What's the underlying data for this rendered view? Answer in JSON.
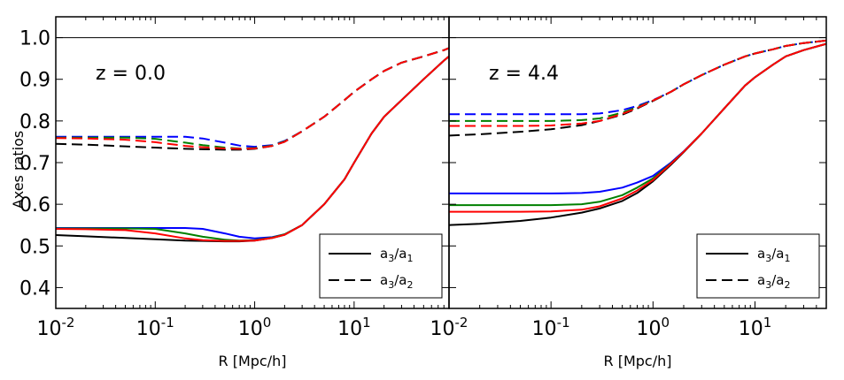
{
  "figure": {
    "ylabel": "Axes ratios"
  },
  "chart_data": [
    {
      "type": "line",
      "annotation": "z = 0.0",
      "xlabel": "R [Mpc/h]",
      "ylabel": "Axes ratios",
      "xscale": "log",
      "xlim": [
        0.01,
        90
      ],
      "ylim": [
        0.35,
        1.05
      ],
      "xticks": [
        {
          "value": 0.01,
          "label": "10",
          "exp": "-2"
        },
        {
          "value": 0.1,
          "label": "10",
          "exp": "-1"
        },
        {
          "value": 1,
          "label": "10",
          "exp": "0"
        },
        {
          "value": 10,
          "label": "10",
          "exp": "1"
        }
      ],
      "yticks": [
        "0.4",
        "0.5",
        "0.6",
        "0.7",
        "0.8",
        "0.9",
        "1.0"
      ],
      "reference_line": {
        "y": 1.0,
        "color": "#000000"
      },
      "legend": {
        "placement": "lower-right",
        "entries": [
          {
            "label": "a3/a1",
            "base": "a",
            "sub1": "3",
            "sep": "/a",
            "sub2": "1",
            "style": "solid"
          },
          {
            "label": "a3/a2",
            "base": "a",
            "sub1": "3",
            "sep": "/a",
            "sub2": "2",
            "style": "dashed"
          }
        ]
      },
      "x": [
        0.01,
        0.02,
        0.05,
        0.1,
        0.2,
        0.3,
        0.5,
        0.7,
        1,
        1.5,
        2,
        3,
        5,
        8,
        10,
        15,
        20,
        30,
        50,
        80,
        90
      ],
      "series": [
        {
          "name": "a3/a1 black",
          "color": "#000000",
          "style": "solid",
          "values": [
            0.526,
            0.523,
            0.519,
            0.516,
            0.513,
            0.512,
            0.511,
            0.511,
            0.513,
            0.519,
            0.527,
            0.55,
            0.6,
            0.66,
            0.7,
            0.77,
            0.81,
            0.85,
            0.9,
            0.945,
            0.955
          ]
        },
        {
          "name": "a3/a1 blue",
          "color": "#0000ff",
          "style": "solid",
          "values": [
            0.543,
            0.543,
            0.543,
            0.543,
            0.543,
            0.541,
            0.53,
            0.522,
            0.518,
            0.521,
            0.528,
            0.55,
            0.6,
            0.66,
            0.7,
            0.77,
            0.81,
            0.85,
            0.9,
            0.945,
            0.955
          ]
        },
        {
          "name": "a3/a1 green",
          "color": "#008000",
          "style": "solid",
          "values": [
            0.542,
            0.542,
            0.542,
            0.541,
            0.53,
            0.522,
            0.515,
            0.513,
            0.514,
            0.52,
            0.528,
            0.55,
            0.6,
            0.66,
            0.7,
            0.77,
            0.81,
            0.85,
            0.9,
            0.945,
            0.955
          ]
        },
        {
          "name": "a3/a1 red",
          "color": "#ff0000",
          "style": "solid",
          "values": [
            0.541,
            0.54,
            0.538,
            0.53,
            0.518,
            0.514,
            0.512,
            0.512,
            0.513,
            0.519,
            0.527,
            0.55,
            0.6,
            0.66,
            0.7,
            0.77,
            0.81,
            0.85,
            0.9,
            0.945,
            0.955
          ]
        },
        {
          "name": "a3/a2 black",
          "color": "#000000",
          "style": "dashed",
          "values": [
            0.745,
            0.743,
            0.739,
            0.736,
            0.733,
            0.732,
            0.731,
            0.731,
            0.733,
            0.74,
            0.75,
            0.775,
            0.81,
            0.85,
            0.87,
            0.9,
            0.92,
            0.94,
            0.955,
            0.97,
            0.975
          ]
        },
        {
          "name": "a3/a2 blue",
          "color": "#0000ff",
          "style": "dashed",
          "values": [
            0.762,
            0.762,
            0.762,
            0.762,
            0.762,
            0.758,
            0.748,
            0.741,
            0.738,
            0.742,
            0.752,
            0.775,
            0.81,
            0.85,
            0.87,
            0.9,
            0.92,
            0.94,
            0.955,
            0.97,
            0.975
          ]
        },
        {
          "name": "a3/a2 green",
          "color": "#008000",
          "style": "dashed",
          "values": [
            0.76,
            0.76,
            0.76,
            0.757,
            0.748,
            0.742,
            0.736,
            0.734,
            0.735,
            0.741,
            0.751,
            0.775,
            0.81,
            0.85,
            0.87,
            0.9,
            0.92,
            0.94,
            0.955,
            0.97,
            0.975
          ]
        },
        {
          "name": "a3/a2 red",
          "color": "#ff0000",
          "style": "dashed",
          "values": [
            0.759,
            0.758,
            0.755,
            0.749,
            0.74,
            0.737,
            0.734,
            0.733,
            0.734,
            0.74,
            0.75,
            0.775,
            0.81,
            0.85,
            0.87,
            0.9,
            0.92,
            0.94,
            0.955,
            0.97,
            0.975
          ]
        }
      ]
    },
    {
      "type": "line",
      "annotation": "z = 4.4",
      "xlabel": "R [Mpc/h]",
      "xscale": "log",
      "xlim": [
        0.01,
        50
      ],
      "ylim": [
        0.35,
        1.05
      ],
      "xticks": [
        {
          "value": 0.01,
          "label": "10",
          "exp": "-2"
        },
        {
          "value": 0.1,
          "label": "10",
          "exp": "-1"
        },
        {
          "value": 1,
          "label": "10",
          "exp": "0"
        },
        {
          "value": 10,
          "label": "10",
          "exp": "1"
        }
      ],
      "reference_line": {
        "y": 1.0,
        "color": "#000000"
      },
      "legend": {
        "placement": "lower-right",
        "entries": [
          {
            "label": "a3/a1",
            "base": "a",
            "sub1": "3",
            "sep": "/a",
            "sub2": "1",
            "style": "solid"
          },
          {
            "label": "a3/a2",
            "base": "a",
            "sub1": "3",
            "sep": "/a",
            "sub2": "2",
            "style": "dashed"
          }
        ]
      },
      "x": [
        0.01,
        0.02,
        0.05,
        0.1,
        0.2,
        0.3,
        0.5,
        0.7,
        1,
        1.5,
        2,
        3,
        5,
        8,
        10,
        15,
        20,
        30,
        50
      ],
      "series": [
        {
          "name": "a3/a1 black",
          "color": "#000000",
          "style": "solid",
          "values": [
            0.55,
            0.553,
            0.56,
            0.568,
            0.58,
            0.59,
            0.608,
            0.627,
            0.655,
            0.695,
            0.725,
            0.77,
            0.83,
            0.885,
            0.905,
            0.935,
            0.955,
            0.97,
            0.985
          ]
        },
        {
          "name": "a3/a1 blue",
          "color": "#0000ff",
          "style": "solid",
          "values": [
            0.626,
            0.626,
            0.626,
            0.626,
            0.627,
            0.63,
            0.64,
            0.652,
            0.668,
            0.7,
            0.727,
            0.77,
            0.83,
            0.885,
            0.905,
            0.935,
            0.955,
            0.97,
            0.985
          ]
        },
        {
          "name": "a3/a1 green",
          "color": "#008000",
          "style": "solid",
          "values": [
            0.598,
            0.598,
            0.598,
            0.598,
            0.6,
            0.606,
            0.622,
            0.64,
            0.662,
            0.698,
            0.726,
            0.77,
            0.83,
            0.885,
            0.905,
            0.935,
            0.955,
            0.97,
            0.985
          ]
        },
        {
          "name": "a3/a1 red",
          "color": "#ff0000",
          "style": "solid",
          "values": [
            0.582,
            0.582,
            0.582,
            0.583,
            0.587,
            0.595,
            0.614,
            0.633,
            0.658,
            0.697,
            0.726,
            0.77,
            0.83,
            0.885,
            0.905,
            0.935,
            0.955,
            0.97,
            0.985
          ]
        },
        {
          "name": "a3/a2 black",
          "color": "#000000",
          "style": "dashed",
          "values": [
            0.765,
            0.768,
            0.774,
            0.78,
            0.79,
            0.8,
            0.815,
            0.83,
            0.848,
            0.87,
            0.888,
            0.91,
            0.935,
            0.955,
            0.962,
            0.972,
            0.98,
            0.987,
            0.993
          ]
        },
        {
          "name": "a3/a2 blue",
          "color": "#0000ff",
          "style": "dashed",
          "values": [
            0.816,
            0.816,
            0.816,
            0.816,
            0.816,
            0.818,
            0.826,
            0.836,
            0.85,
            0.87,
            0.888,
            0.91,
            0.935,
            0.955,
            0.962,
            0.972,
            0.98,
            0.987,
            0.993
          ]
        },
        {
          "name": "a3/a2 green",
          "color": "#008000",
          "style": "dashed",
          "values": [
            0.8,
            0.8,
            0.8,
            0.8,
            0.802,
            0.806,
            0.82,
            0.833,
            0.849,
            0.87,
            0.888,
            0.91,
            0.935,
            0.955,
            0.962,
            0.972,
            0.98,
            0.987,
            0.993
          ]
        },
        {
          "name": "a3/a2 red",
          "color": "#ff0000",
          "style": "dashed",
          "values": [
            0.788,
            0.788,
            0.788,
            0.789,
            0.794,
            0.8,
            0.817,
            0.831,
            0.849,
            0.87,
            0.888,
            0.91,
            0.935,
            0.955,
            0.962,
            0.972,
            0.98,
            0.987,
            0.993
          ]
        }
      ]
    }
  ]
}
